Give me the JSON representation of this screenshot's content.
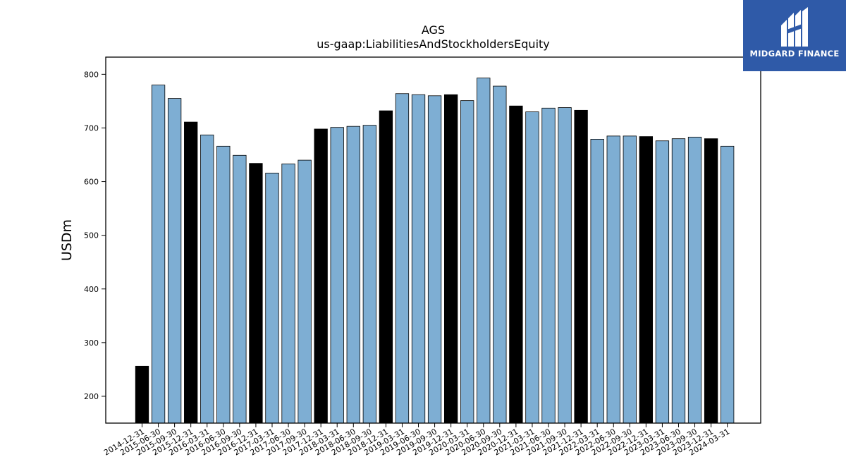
{
  "chart_data": {
    "type": "bar",
    "title": "AGS",
    "subtitle": "us-gaap:LiabilitiesAndStockholdersEquity",
    "xlabel": "",
    "ylabel": "USDm",
    "ylim": [
      150,
      832
    ],
    "yticks": [
      200,
      300,
      400,
      500,
      600,
      700,
      800
    ],
    "grid": false,
    "categories": [
      "2014-12-31",
      "2015-06-30",
      "2015-09-30",
      "2015-12-31",
      "2016-03-31",
      "2016-06-30",
      "2016-09-30",
      "2016-12-31",
      "2017-03-31",
      "2017-06-30",
      "2017-09-30",
      "2017-12-31",
      "2018-03-31",
      "2018-06-30",
      "2018-09-30",
      "2018-12-31",
      "2019-03-31",
      "2019-06-30",
      "2019-09-30",
      "2019-12-31",
      "2020-03-31",
      "2020-06-30",
      "2020-09-30",
      "2020-12-31",
      "2021-03-31",
      "2021-06-30",
      "2021-09-30",
      "2021-12-31",
      "2022-03-31",
      "2022-06-30",
      "2022-09-30",
      "2022-12-31",
      "2023-03-31",
      "2023-06-30",
      "2023-09-30",
      "2023-12-31",
      "2024-03-31"
    ],
    "values": [
      256,
      780,
      755,
      711,
      687,
      666,
      649,
      634,
      616,
      633,
      640,
      698,
      701,
      703,
      705,
      732,
      764,
      762,
      760,
      762,
      751,
      793,
      778,
      741,
      730,
      737,
      738,
      733,
      679,
      685,
      685,
      684,
      676,
      680,
      683,
      680,
      666
    ],
    "bar_colors": {
      "annual": "#000000",
      "quarterly": "#7eaed3"
    },
    "year_end_flags": [
      1,
      0,
      0,
      1,
      0,
      0,
      0,
      1,
      0,
      0,
      0,
      1,
      0,
      0,
      0,
      1,
      0,
      0,
      0,
      1,
      0,
      0,
      0,
      1,
      0,
      0,
      0,
      1,
      0,
      0,
      0,
      1,
      0,
      0,
      0,
      1,
      0
    ]
  },
  "logo": {
    "text": "MIDGARD FINANCE",
    "icon": "midgard-m-logo-icon",
    "color": "#2f5aa8"
  }
}
